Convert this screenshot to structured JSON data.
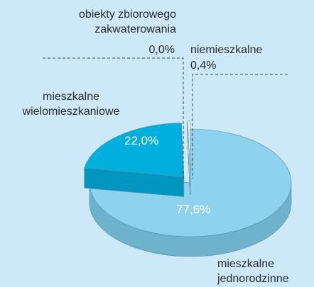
{
  "chart_data": {
    "type": "pie3d",
    "categories": [
      "mieszkalne jednorodzinne",
      "mieszkalne wielomieszkaniowe",
      "obiekty zbiorowego zakwaterowania",
      "niemieszkalne"
    ],
    "values": [
      77.6,
      22.0,
      0.0,
      0.4
    ],
    "value_labels": [
      "77,6%",
      "22,0%",
      "0,0%",
      "0,4%"
    ],
    "colors": [
      "#8fd2ef",
      "#00afdc",
      "#ffffff",
      "#ffffff"
    ],
    "side_colors": [
      "#6fb2cc",
      "#0096bf",
      "#d8eef7",
      "#d8eef7"
    ]
  }
}
